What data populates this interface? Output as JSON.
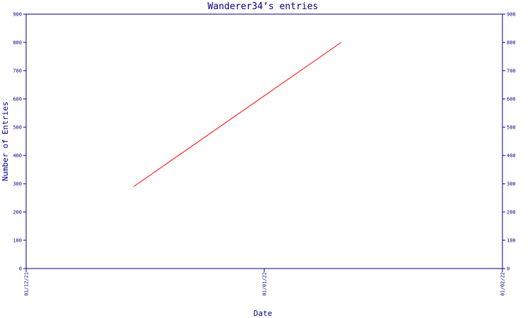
{
  "chart_data": {
    "type": "line",
    "title": "Wanderer34’s entries",
    "xlabel": "Date",
    "ylabel": "Number of Entries",
    "x_ticks": [
      "01/12/21",
      "01/01/22",
      "01/02/22"
    ],
    "xlim": [
      "2021-12-01",
      "2022-02-01"
    ],
    "ylim": [
      0,
      900
    ],
    "y_ticks": [
      0,
      100,
      200,
      300,
      400,
      500,
      600,
      700,
      800,
      900
    ],
    "grid": false,
    "legend": "none",
    "series": [
      {
        "color": "#ff0000",
        "points": [
          {
            "x": "2021-12-15",
            "y": 290
          },
          {
            "x": "2022-01-11",
            "y": 800
          }
        ]
      }
    ]
  },
  "colors": {
    "axis": "#000080",
    "background": "#ffffff"
  }
}
